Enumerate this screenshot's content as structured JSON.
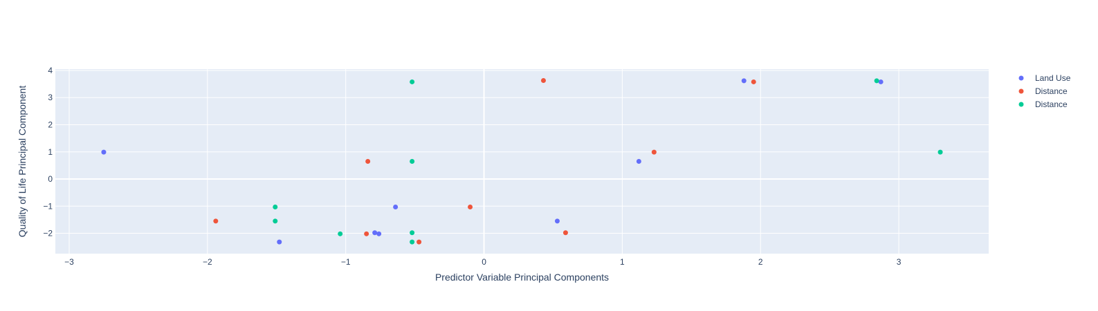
{
  "chart_data": {
    "type": "scatter",
    "title": "",
    "xlabel": "Predictor Variable Principal Components",
    "ylabel": "Quality of Life Principal Component",
    "xlim": [
      -3.1,
      3.65
    ],
    "ylim": [
      -2.75,
      4.05
    ],
    "x_ticks": [
      -3,
      -2,
      -1,
      0,
      1,
      2,
      3
    ],
    "y_ticks": [
      -2,
      -1,
      0,
      1,
      2,
      3,
      4
    ],
    "grid": true,
    "legend_position": "right",
    "colors": {
      "plot_background": "#e5ecf6",
      "grid": "#ffffff",
      "text": "#2a3f5f"
    },
    "series": [
      {
        "name": "Land Use",
        "color": "#636efa",
        "points": [
          [
            -2.75,
            0.99
          ],
          [
            -1.48,
            -2.32
          ],
          [
            -0.64,
            -1.03
          ],
          [
            -0.79,
            -1.98
          ],
          [
            -0.76,
            -2.02
          ],
          [
            0.53,
            -1.55
          ],
          [
            1.12,
            0.65
          ],
          [
            1.88,
            3.62
          ],
          [
            2.87,
            3.58
          ]
        ]
      },
      {
        "name": "Distance",
        "color": "#ef553b",
        "points": [
          [
            -1.94,
            -1.55
          ],
          [
            -0.84,
            0.65
          ],
          [
            -0.85,
            -2.02
          ],
          [
            -0.47,
            -2.32
          ],
          [
            -0.1,
            -1.03
          ],
          [
            0.43,
            3.63
          ],
          [
            0.59,
            -1.98
          ],
          [
            1.23,
            0.99
          ],
          [
            1.95,
            3.58
          ]
        ]
      },
      {
        "name": "Distance",
        "color": "#00cc96",
        "points": [
          [
            -1.51,
            -1.03
          ],
          [
            -1.51,
            -1.55
          ],
          [
            -1.04,
            -2.02
          ],
          [
            -0.52,
            3.58
          ],
          [
            -0.52,
            0.65
          ],
          [
            -0.52,
            -1.98
          ],
          [
            -0.52,
            -2.32
          ],
          [
            2.84,
            3.62
          ],
          [
            3.3,
            0.99
          ]
        ]
      }
    ]
  }
}
